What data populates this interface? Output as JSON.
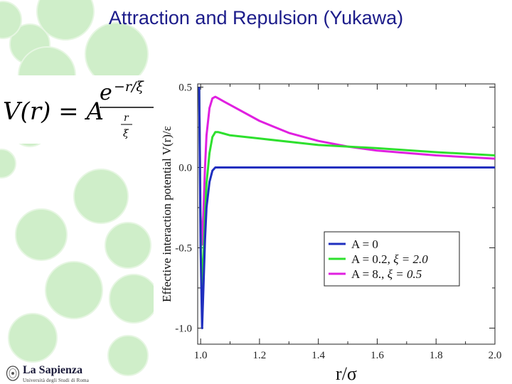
{
  "slide": {
    "title": "Attraction and Repulsion (Yukawa)",
    "title_color": "#1c1c8a",
    "bubble_color": "#cfeec9"
  },
  "logo": {
    "name": "La Sapienza",
    "subtitle": "Università degli Studi di Roma"
  },
  "formula": {
    "lhs": "V(r) = A",
    "numerator_base": "e",
    "numerator_exponent": "−r/ξ",
    "denominator_top": "r",
    "denominator_bottom": "ξ"
  },
  "chart_data": {
    "type": "line",
    "xlabel": "r/σ",
    "ylabel": "Effective interaction potential V(r)/ε",
    "xlim": [
      0.99,
      2.0
    ],
    "ylim": [
      -1.1,
      0.52
    ],
    "x_ticks": [
      1.0,
      1.2,
      1.4,
      1.6,
      1.8,
      2.0
    ],
    "x_tick_labels": [
      "1.0",
      "1.2",
      "1.4",
      "1.6",
      "1.8",
      "2.0"
    ],
    "y_ticks": [
      -1.0,
      -0.5,
      0.0,
      0.5
    ],
    "y_tick_labels": [
      "-1.0",
      "-0.5",
      "0.0",
      "0.5"
    ],
    "grid": false,
    "legend_position": "lower-right",
    "series": [
      {
        "name": "A = 0",
        "label_parts": [
          "A = 0",
          ""
        ],
        "color": "#1f2fbf",
        "x": [
          0.995,
          1.0,
          1.005,
          1.01,
          1.015,
          1.02,
          1.03,
          1.04,
          1.05,
          1.06,
          1.08,
          1.1,
          1.2,
          1.4,
          1.6,
          1.8,
          2.0
        ],
        "y": [
          0.5,
          -0.5,
          -1.0,
          -0.72,
          -0.45,
          -0.25,
          -0.09,
          -0.02,
          0.0,
          0.0,
          0.0,
          0.0,
          0.0,
          0.0,
          0.0,
          0.0,
          0.0
        ]
      },
      {
        "name": "A = 0.2, ξ = 2.0",
        "label_parts": [
          "A = 0.2, ",
          "ξ = 2.0"
        ],
        "color": "#2ee02e",
        "x": [
          0.995,
          1.0,
          1.005,
          1.01,
          1.015,
          1.02,
          1.03,
          1.04,
          1.05,
          1.06,
          1.08,
          1.1,
          1.2,
          1.4,
          1.6,
          1.8,
          2.0
        ],
        "y": [
          0.5,
          -0.4,
          -0.76,
          -0.55,
          -0.3,
          -0.1,
          0.09,
          0.19,
          0.22,
          0.22,
          0.21,
          0.2,
          0.18,
          0.14,
          0.12,
          0.095,
          0.075
        ]
      },
      {
        "name": "A = 8., ξ = 0.5",
        "label_parts": [
          "A = 8.,  ",
          "ξ = 0.5"
        ],
        "color": "#e020e0",
        "x": [
          0.995,
          1.0,
          1.005,
          1.01,
          1.015,
          1.02,
          1.03,
          1.04,
          1.05,
          1.06,
          1.08,
          1.1,
          1.2,
          1.3,
          1.4,
          1.5,
          1.6,
          1.8,
          2.0
        ],
        "y": [
          0.5,
          -0.3,
          -0.48,
          -0.25,
          0.0,
          0.2,
          0.37,
          0.43,
          0.44,
          0.43,
          0.41,
          0.39,
          0.29,
          0.215,
          0.165,
          0.13,
          0.105,
          0.075,
          0.055
        ]
      }
    ]
  }
}
